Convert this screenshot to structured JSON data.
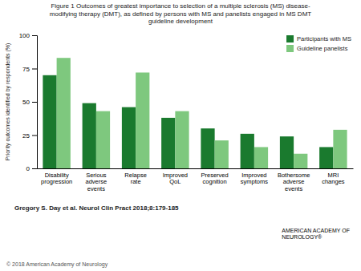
{
  "chart_data": {
    "type": "bar",
    "title": "Figure 1 Outcomes of greatest importance to selection of a multiple sclerosis (MS) disease-\nmodifying therapy (DMT), as defined by persons with MS and panelists engaged in MS DMT\nguideline development",
    "ylabel": "Priority outcomes identified by respondents (%)",
    "categories": [
      "Disability\nprogression",
      "Serious\nadverse\nevents",
      "Relapse\nrate",
      "Improved\nQoL",
      "Preserved\ncognition",
      "Improved\nsymptoms",
      "Bothersome\nadverse\nevents",
      "MRI\nchanges"
    ],
    "series": [
      {
        "name": "Participants with MS",
        "color": "#1a7a2e",
        "values": [
          70,
          49,
          46,
          38,
          30,
          26,
          24,
          16
        ]
      },
      {
        "name": "Guideline panelists",
        "color": "#7ec87e",
        "values": [
          83,
          43,
          72,
          43,
          21,
          16,
          11,
          29
        ]
      }
    ],
    "ylim": [
      0,
      100
    ],
    "yticks": [
      0,
      25,
      50,
      75,
      100
    ],
    "grid": false,
    "legend": "upper right",
    "annotations": [
      "Gregory S. Day et al. Neurol Clin Pract 2018;8:179-185",
      "© 2018 American Academy of Neurology",
      "AMERICAN ACADEMY OF\nNEUROLOGY®"
    ]
  }
}
